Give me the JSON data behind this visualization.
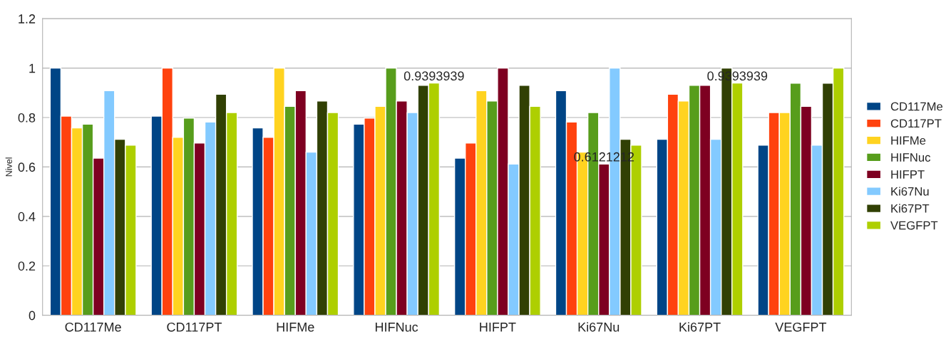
{
  "chart_data": {
    "type": "bar",
    "ylabel": "Nivel",
    "categories": [
      "CD117Me",
      "CD117PT",
      "HIFMe",
      "HIFNuc",
      "HIFPT",
      "Ki67Nu",
      "Ki67PT",
      "VEGFPT"
    ],
    "series": [
      {
        "name": "CD117Me",
        "color": "#004586",
        "values": [
          1,
          0.806,
          0.758,
          0.773,
          0.636,
          0.909,
          0.712,
          0.688
        ]
      },
      {
        "name": "CD117PT",
        "color": "#ff420e",
        "values": [
          0.806,
          1,
          0.72,
          0.798,
          0.697,
          0.782,
          0.894,
          0.82
        ]
      },
      {
        "name": "HIFMe",
        "color": "#ffd320",
        "values": [
          0.758,
          0.72,
          1,
          0.845,
          0.909,
          0.66,
          0.867,
          0.82
        ]
      },
      {
        "name": "HIFNuc",
        "color": "#579d1c",
        "values": [
          0.773,
          0.798,
          0.845,
          1,
          0.867,
          0.82,
          0.93,
          0.939
        ]
      },
      {
        "name": "HIFPT",
        "color": "#7e0021",
        "values": [
          0.636,
          0.697,
          0.909,
          0.867,
          1,
          0.6121212,
          0.93,
          0.845
        ],
        "value_labels": [
          null,
          null,
          null,
          null,
          null,
          "0.6121212",
          null,
          null
        ]
      },
      {
        "name": "Ki67Nu",
        "color": "#83caff",
        "values": [
          0.909,
          0.782,
          0.66,
          0.82,
          0.612,
          1,
          0.712,
          0.688
        ]
      },
      {
        "name": "Ki67PT",
        "color": "#314004",
        "values": [
          0.712,
          0.894,
          0.867,
          0.93,
          0.93,
          0.712,
          1,
          0.939
        ]
      },
      {
        "name": "VEGFPT",
        "color": "#aecf00",
        "values": [
          0.688,
          0.82,
          0.82,
          0.9393939,
          0.845,
          0.688,
          0.9393939,
          1
        ],
        "value_labels": [
          null,
          null,
          null,
          "0.9393939",
          null,
          null,
          "0.9393939",
          null
        ]
      }
    ],
    "ylim": [
      0,
      1.2
    ],
    "yticks": [
      0,
      0.2,
      0.4,
      0.6,
      0.8,
      1,
      1.2
    ],
    "grid": "y",
    "legend": "right"
  }
}
